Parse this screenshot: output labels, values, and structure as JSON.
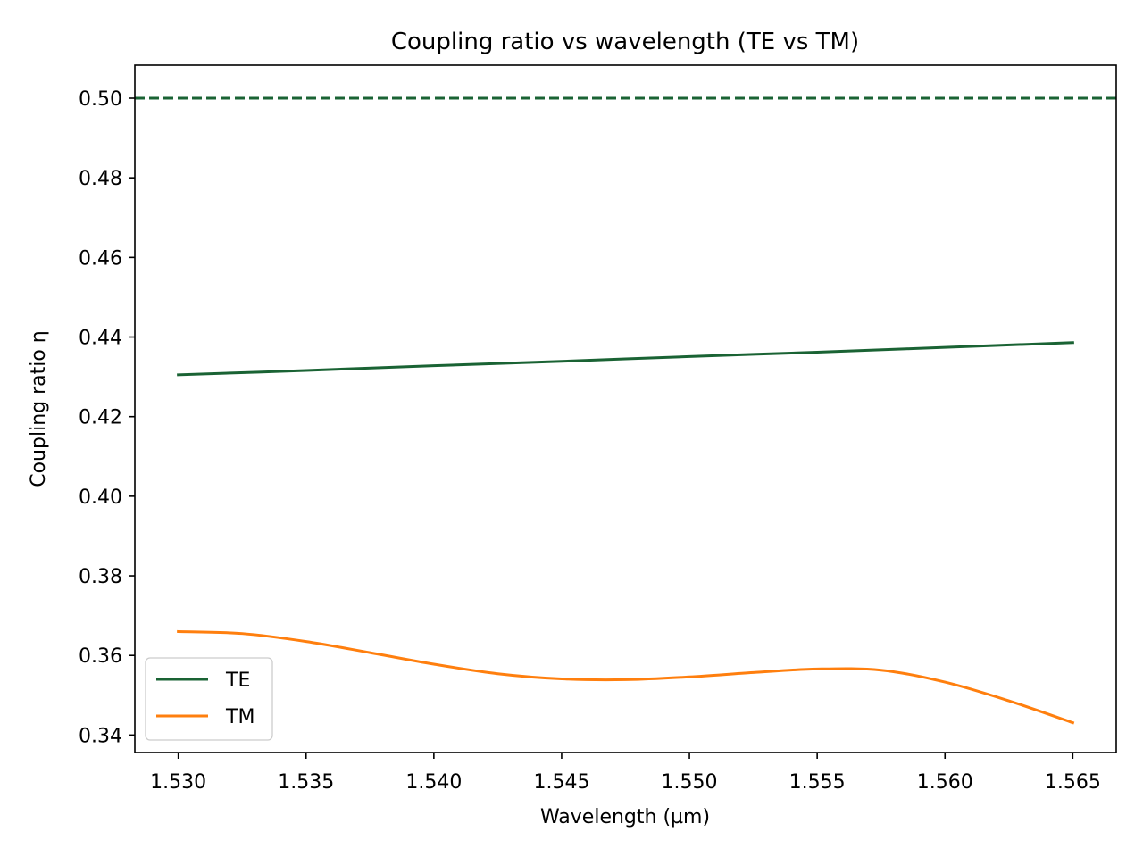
{
  "chart_data": {
    "type": "line",
    "title": "Coupling ratio vs wavelength (TE vs TM)",
    "xlabel": "Wavelength (µm)",
    "ylabel": "Coupling ratio η",
    "xlim": [
      1.5283,
      1.5667
    ],
    "ylim": [
      0.3356,
      0.5083
    ],
    "xticks": [
      1.53,
      1.535,
      1.54,
      1.545,
      1.55,
      1.555,
      1.56,
      1.565
    ],
    "xtick_labels": [
      "1.530",
      "1.535",
      "1.540",
      "1.545",
      "1.550",
      "1.555",
      "1.560",
      "1.565"
    ],
    "yticks": [
      0.34,
      0.36,
      0.38,
      0.4,
      0.42,
      0.44,
      0.46,
      0.48,
      0.5
    ],
    "ytick_labels": [
      "0.34",
      "0.36",
      "0.38",
      "0.40",
      "0.42",
      "0.44",
      "0.46",
      "0.48",
      "0.50"
    ],
    "grid": false,
    "legend_position": "lower-left",
    "reference_line": {
      "y": 0.5,
      "style": "dashed",
      "color": "#1a6334"
    },
    "series": [
      {
        "name": "TE",
        "color": "#1a6334",
        "x": [
          1.53,
          1.535,
          1.54,
          1.545,
          1.55,
          1.555,
          1.56,
          1.565
        ],
        "y": [
          0.4305,
          0.4316,
          0.4328,
          0.4339,
          0.4351,
          0.4362,
          0.4374,
          0.4386
        ]
      },
      {
        "name": "TM",
        "color": "#ff7f0e",
        "x": [
          1.53,
          1.5325,
          1.535,
          1.5375,
          1.54,
          1.5425,
          1.545,
          1.5475,
          1.55,
          1.5525,
          1.555,
          1.5575,
          1.56,
          1.5625,
          1.565
        ],
        "y": [
          0.366,
          0.3655,
          0.3635,
          0.3607,
          0.3578,
          0.3554,
          0.3541,
          0.3539,
          0.3546,
          0.3557,
          0.3566,
          0.3563,
          0.3533,
          0.3486,
          0.3431
        ]
      }
    ]
  }
}
